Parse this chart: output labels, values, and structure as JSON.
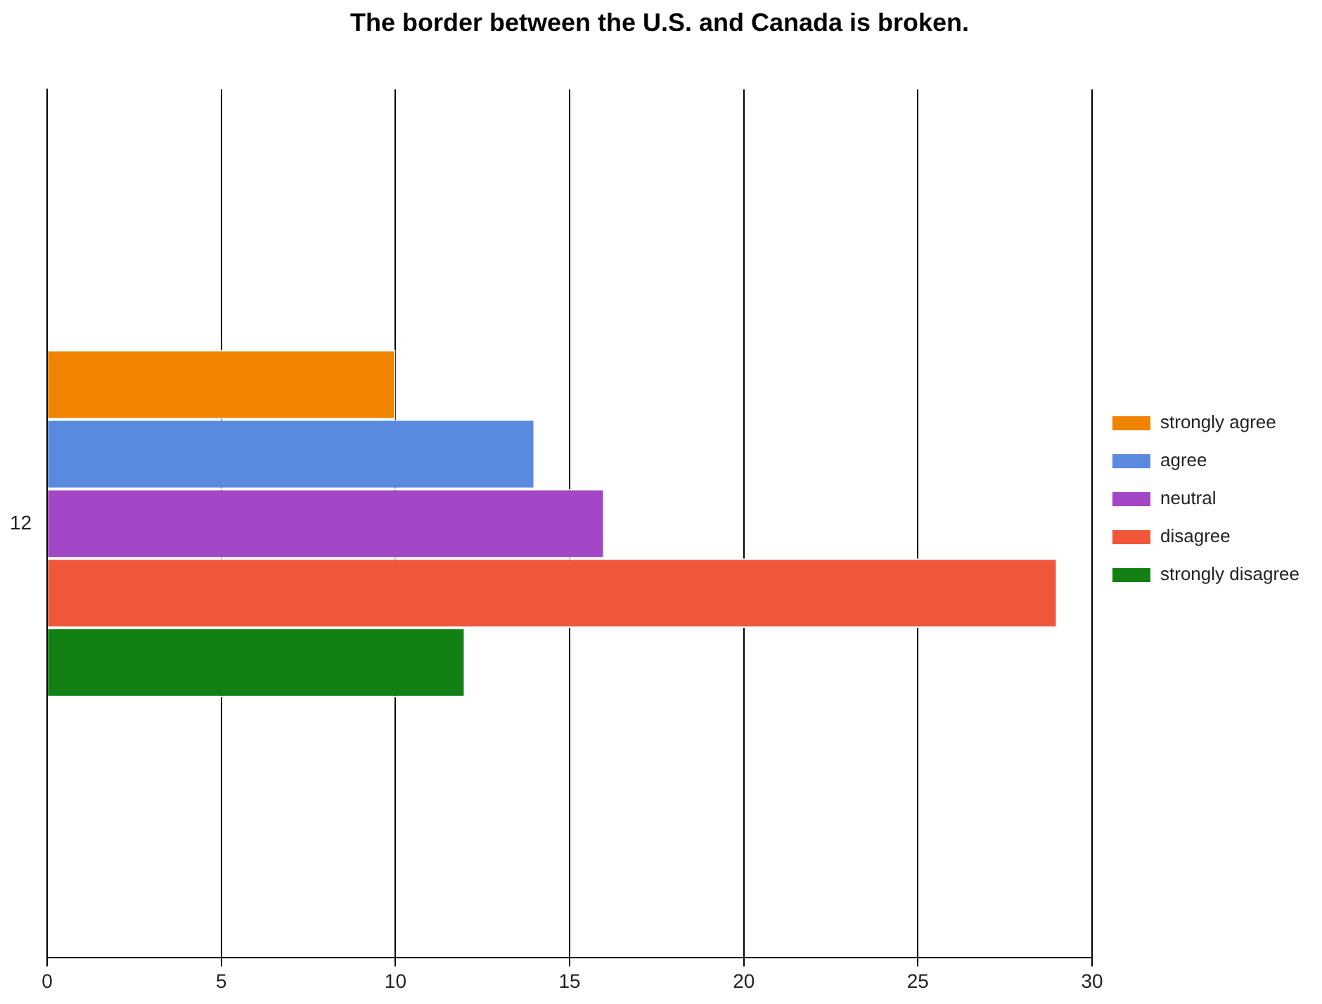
{
  "chart_data": {
    "type": "bar",
    "orientation": "horizontal",
    "title": "The border between the U.S. and Canada is broken.",
    "categories": [
      "12"
    ],
    "series": [
      {
        "name": "strongly agree",
        "color": "#f08400",
        "values": [
          10
        ]
      },
      {
        "name": "agree",
        "color": "#5a8ae0",
        "values": [
          14
        ]
      },
      {
        "name": "neutral",
        "color": "#a447c6",
        "values": [
          16
        ]
      },
      {
        "name": "disagree",
        "color": "#f0563a",
        "values": [
          29
        ]
      },
      {
        "name": "strongly disagree",
        "color": "#138013",
        "values": [
          12
        ]
      }
    ],
    "xlim": [
      0,
      30
    ],
    "xticks": [
      0,
      5,
      10,
      15,
      20,
      25,
      30
    ],
    "grid": "x",
    "legend": "right"
  }
}
